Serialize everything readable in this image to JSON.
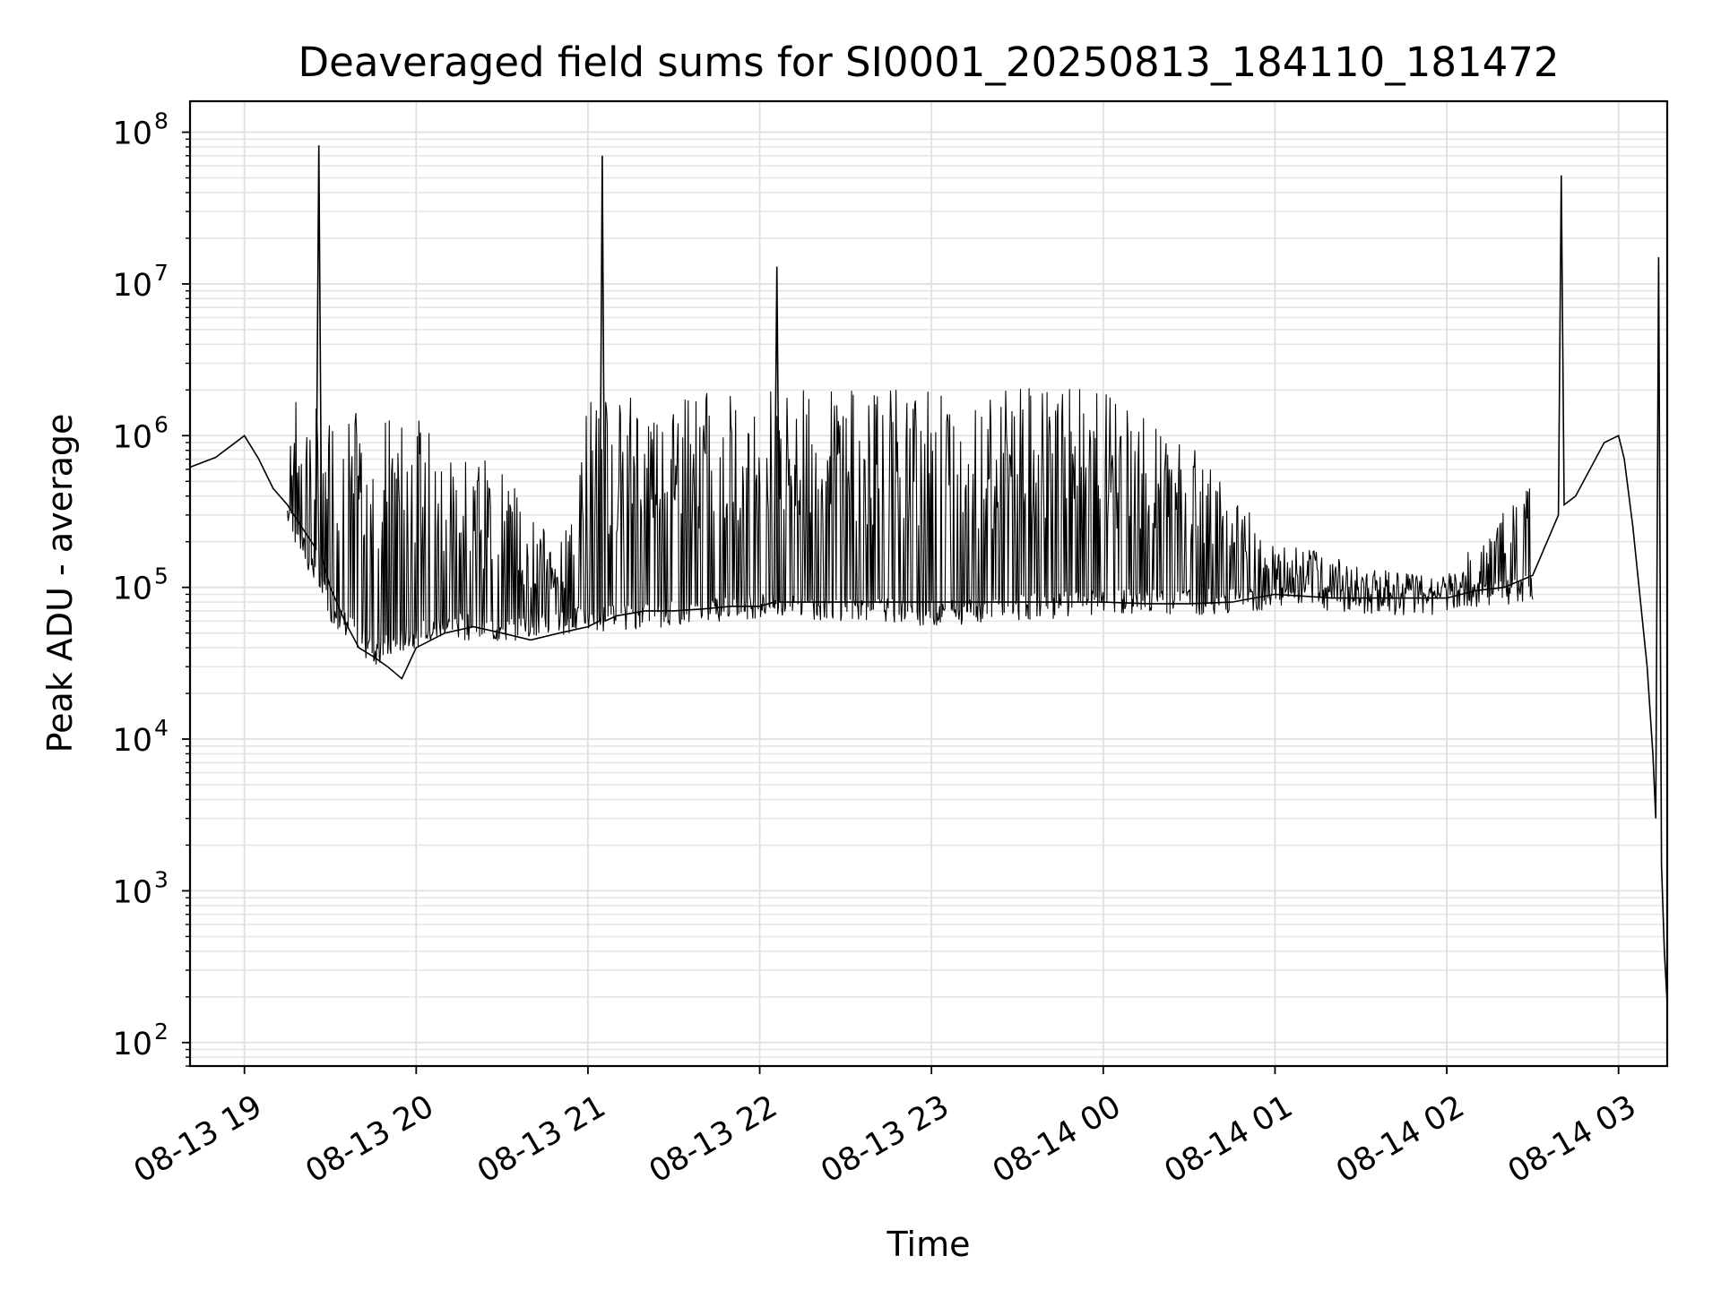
{
  "chart_data": {
    "type": "line",
    "title": "Deaveraged field sums for SI0001_20250813_184110_181472",
    "xlabel": "Time",
    "ylabel": "Peak ADU - average",
    "yscale": "log",
    "ylim": [
      70,
      160000000
    ],
    "xlim": [
      "2025-08-13 18:41",
      "2025-08-14 03:17"
    ],
    "grid": "both",
    "x_ticks": [
      {
        "value": "2025-08-13 19:00",
        "label": "08-13 19"
      },
      {
        "value": "2025-08-13 20:00",
        "label": "08-13 20"
      },
      {
        "value": "2025-08-13 21:00",
        "label": "08-13 21"
      },
      {
        "value": "2025-08-13 22:00",
        "label": "08-13 22"
      },
      {
        "value": "2025-08-13 23:00",
        "label": "08-13 23"
      },
      {
        "value": "2025-08-14 00:00",
        "label": "08-14 00"
      },
      {
        "value": "2025-08-14 01:00",
        "label": "08-14 01"
      },
      {
        "value": "2025-08-14 02:00",
        "label": "08-14 02"
      },
      {
        "value": "2025-08-14 03:00",
        "label": "08-14 03"
      }
    ],
    "y_ticks": [
      {
        "value": 100,
        "base": "10",
        "exp": "2"
      },
      {
        "value": 1000,
        "base": "10",
        "exp": "3"
      },
      {
        "value": 10000,
        "base": "10",
        "exp": "4"
      },
      {
        "value": 100000,
        "base": "10",
        "exp": "5"
      },
      {
        "value": 1000000,
        "base": "10",
        "exp": "6"
      },
      {
        "value": 10000000,
        "base": "10",
        "exp": "7"
      },
      {
        "value": 100000000,
        "base": "10",
        "exp": "8"
      }
    ],
    "series": [
      {
        "color": "#000000",
        "x": [
          "2025-08-13 18:41",
          "2025-08-13 18:50",
          "2025-08-13 19:00",
          "2025-08-13 19:05",
          "2025-08-13 19:10",
          "2025-08-13 19:15",
          "2025-08-13 19:20",
          "2025-08-13 19:25",
          "2025-08-13 19:26",
          "2025-08-13 19:27",
          "2025-08-13 19:30",
          "2025-08-13 19:35",
          "2025-08-13 19:40",
          "2025-08-13 19:45",
          "2025-08-13 19:50",
          "2025-08-13 19:55",
          "2025-08-13 20:00",
          "2025-08-13 20:10",
          "2025-08-13 20:20",
          "2025-08-13 20:30",
          "2025-08-13 20:40",
          "2025-08-13 20:50",
          "2025-08-13 21:00",
          "2025-08-13 21:04",
          "2025-08-13 21:05",
          "2025-08-13 21:06",
          "2025-08-13 21:10",
          "2025-08-13 21:20",
          "2025-08-13 21:30",
          "2025-08-13 21:40",
          "2025-08-13 21:50",
          "2025-08-13 22:00",
          "2025-08-13 22:05",
          "2025-08-13 22:06",
          "2025-08-13 22:07",
          "2025-08-13 22:15",
          "2025-08-13 22:30",
          "2025-08-13 22:45",
          "2025-08-13 23:00",
          "2025-08-13 23:20",
          "2025-08-13 23:40",
          "2025-08-14 00:00",
          "2025-08-14 00:15",
          "2025-08-14 00:30",
          "2025-08-14 00:45",
          "2025-08-14 01:00",
          "2025-08-14 01:20",
          "2025-08-14 01:40",
          "2025-08-14 02:00",
          "2025-08-14 02:10",
          "2025-08-14 02:20",
          "2025-08-14 02:30",
          "2025-08-14 02:39",
          "2025-08-14 02:40",
          "2025-08-14 02:41",
          "2025-08-14 02:45",
          "2025-08-14 02:50",
          "2025-08-14 02:55",
          "2025-08-14 03:00",
          "2025-08-14 03:02",
          "2025-08-14 03:05",
          "2025-08-14 03:10",
          "2025-08-14 03:12",
          "2025-08-14 03:13",
          "2025-08-14 03:14",
          "2025-08-14 03:15",
          "2025-08-14 03:16",
          "2025-08-14 03:17"
        ],
        "values": [
          620000,
          720000,
          1000000,
          700000,
          450000,
          350000,
          250000,
          180000,
          82000000,
          160000,
          100000,
          60000,
          40000,
          35000,
          30000,
          25000,
          40000,
          50000,
          55000,
          50000,
          45000,
          50000,
          55000,
          60000,
          70000000,
          60000,
          65000,
          70000,
          70000,
          72000,
          75000,
          75000,
          80000,
          13000000,
          80000,
          80000,
          80000,
          80000,
          80000,
          80000,
          80000,
          80000,
          78000,
          78000,
          80000,
          90000,
          85000,
          85000,
          85000,
          95000,
          100000,
          120000,
          300000,
          52000000,
          350000,
          400000,
          600000,
          900000,
          1000000,
          700000,
          250000,
          30000,
          8000,
          3000,
          15000000,
          1500,
          400,
          180
        ]
      }
    ],
    "band_envelope": {
      "x": [
        "2025-08-13 19:15",
        "2025-08-13 19:30",
        "2025-08-13 19:45",
        "2025-08-13 20:00",
        "2025-08-13 20:15",
        "2025-08-13 20:30",
        "2025-08-13 20:50",
        "2025-08-13 21:00",
        "2025-08-13 21:30",
        "2025-08-13 22:00",
        "2025-08-13 22:30",
        "2025-08-13 23:00",
        "2025-08-13 23:30",
        "2025-08-14 00:00",
        "2025-08-14 00:30",
        "2025-08-14 01:00",
        "2025-08-14 01:30",
        "2025-08-14 02:00",
        "2025-08-14 02:15",
        "2025-08-14 02:30"
      ],
      "low": [
        250000,
        60000,
        30000,
        40000,
        45000,
        42000,
        48000,
        50000,
        55000,
        62000,
        60000,
        55000,
        60000,
        65000,
        65000,
        70000,
        65000,
        65000,
        75000,
        80000
      ],
      "high": [
        1800000,
        1500000,
        1400000,
        1300000,
        900000,
        600000,
        180000,
        1900000,
        2000000,
        2000000,
        2100000,
        2000000,
        2100000,
        2000000,
        900000,
        200000,
        150000,
        120000,
        250000,
        500000
      ]
    }
  }
}
